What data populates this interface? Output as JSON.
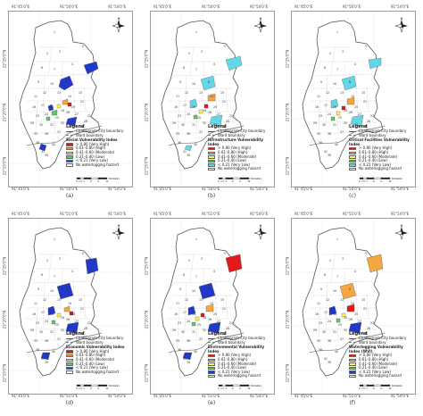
{
  "legend_common": {
    "title": "Legend",
    "city_boundary": "Chattogram City boundary",
    "ward_boundary": "Ward boundary",
    "no_hazard": "No waterlogging hazard"
  },
  "coords": {
    "top_lon_1": "91°45'0\"E",
    "top_lon_2": "91°50'0\"E",
    "top_lon_3": "91°54'0\"E",
    "bot_lon_1": "91°45'0\"E",
    "bot_lon_2": "91°51'0\"E",
    "bot_lon_3": "91°54'0\"E",
    "lat_1": "22°25'0\"N",
    "lat_2": "22°20'0\"N",
    "lat_3": "22°15'0\"N"
  },
  "ward_labels": [
    "1",
    "2",
    "3",
    "4",
    "5",
    "6",
    "7",
    "8",
    "9",
    "10",
    "11",
    "12",
    "13",
    "14",
    "15",
    "16",
    "17",
    "18",
    "19",
    "20",
    "21",
    "22",
    "23",
    "24",
    "25",
    "26",
    "27",
    "28",
    "29",
    "30",
    "31",
    "32",
    "33",
    "34",
    "35",
    "36",
    "37",
    "38",
    "39",
    "40",
    "41"
  ],
  "panels": [
    {
      "caption": "(a)",
      "index_title": "Social Vulnerability Index",
      "classes": [
        {
          "label": "> 0.80 (Very High)",
          "color": "#e31a1c"
        },
        {
          "label": "0.61–0.80 (High)",
          "color": "#f4a641"
        },
        {
          "label": "0.41–0.60 (Moderate)",
          "color": "#fff44f"
        },
        {
          "label": "0.21–0.40 (Low)",
          "color": "#5ec962"
        },
        {
          "label": "< 0.21 (Very Low)",
          "color": "#2039c8"
        }
      ]
    },
    {
      "caption": "(b)",
      "index_title": "Infrastructure Vulnerability Index",
      "classes": [
        {
          "label": "> 0.80 (Very High)",
          "color": "#e31a1c"
        },
        {
          "label": "0.61–0.80 (High)",
          "color": "#f4a641"
        },
        {
          "label": "0.41–0.60 (Moderate)",
          "color": "#fff44f"
        },
        {
          "label": "0.21–0.40 (Low)",
          "color": "#5ec962"
        },
        {
          "label": "< 0.21 (Very Low)",
          "color": "#61d7e8"
        }
      ]
    },
    {
      "caption": "(c)",
      "index_title": "Critical Facilities Vulnerability Index",
      "classes": [
        {
          "label": "> 0.80 (Very High)",
          "color": "#e31a1c"
        },
        {
          "label": "0.61–0.80 (High)",
          "color": "#f4a641"
        },
        {
          "label": "0.41–0.60 (Moderate)",
          "color": "#fff44f"
        },
        {
          "label": "0.21–0.40 (Low)",
          "color": "#5ec962"
        },
        {
          "label": "< 0.21 (Very Low)",
          "color": "#61d7e8"
        }
      ]
    },
    {
      "caption": "(d)",
      "index_title": "Economic Vulnerability Index",
      "classes": [
        {
          "label": "> 0.80 (Very High)",
          "color": "#e31a1c"
        },
        {
          "label": "0.61–0.80 (High)",
          "color": "#f4a641"
        },
        {
          "label": "0.41–0.60 (Moderate)",
          "color": "#fff44f"
        },
        {
          "label": "0.21–0.40 (Low)",
          "color": "#5ec962"
        },
        {
          "label": "< 0.21 (Very Low)",
          "color": "#2039c8"
        }
      ]
    },
    {
      "caption": "(e)",
      "index_title": "Environmental Vulnerability Index",
      "classes": [
        {
          "label": "> 0.80 (Very High)",
          "color": "#e31a1c"
        },
        {
          "label": "0.61–0.80 (High)",
          "color": "#f4a641"
        },
        {
          "label": "0.41–0.60 (Moderate)",
          "color": "#fff44f"
        },
        {
          "label": "0.21–0.40 (Low)",
          "color": "#5ec962"
        },
        {
          "label": "< 0.21 (Very Low)",
          "color": "#2039c8"
        }
      ]
    },
    {
      "caption": "(f)",
      "index_title": "Waterlogging Vulnerability Index (WVI)",
      "classes": [
        {
          "label": "> 0.80 (Very High)",
          "color": "#e31a1c"
        },
        {
          "label": "0.61–0.80 (High)",
          "color": "#f4a641"
        },
        {
          "label": "0.41–0.60 (Moderate)",
          "color": "#fff44f"
        },
        {
          "label": "0.21–0.40 (Low)",
          "color": "#5ec962"
        },
        {
          "label": "< 0.21 (Very Low)",
          "color": "#2039c8"
        }
      ]
    }
  ],
  "scale": {
    "unit": "Kilometers",
    "ticks": [
      "0",
      "1.5",
      "3",
      "6",
      "9",
      "12"
    ]
  },
  "north_label": "N"
}
